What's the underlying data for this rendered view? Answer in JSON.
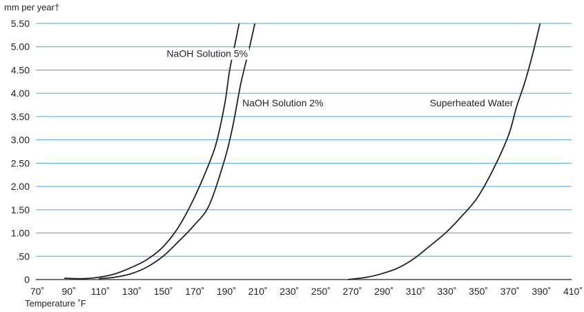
{
  "chart_data": {
    "type": "line",
    "ylabel": "mm per year†",
    "xlabel": "Temperature ˚F",
    "xlim": [
      70,
      410
    ],
    "ylim": [
      0,
      5.5
    ],
    "x_ticks": [
      70,
      90,
      110,
      130,
      150,
      170,
      190,
      210,
      230,
      250,
      270,
      290,
      310,
      330,
      350,
      370,
      390,
      410
    ],
    "x_tick_labels": [
      "70˚",
      "90˚",
      "110˚",
      "130˚",
      "150˚",
      "170˚",
      "190˚",
      "210˚",
      "230˚",
      "250˚",
      "270˚",
      "290˚",
      "310˚",
      "330˚",
      "350˚",
      "370˚",
      "390˚",
      "410˚"
    ],
    "y_ticks": [
      0,
      0.5,
      1.0,
      1.5,
      2.0,
      2.5,
      3.0,
      3.5,
      4.0,
      4.5,
      5.0,
      5.5
    ],
    "y_tick_labels": [
      "0",
      ".50",
      "1.00",
      "1.50",
      "2.00",
      "2.50",
      "3.00",
      "3.50",
      "4.00",
      "4.50",
      "5.00",
      "5.50"
    ],
    "grid": "horizontal",
    "colors": {
      "line": "#231f20",
      "grid": "#4aa3d8",
      "text": "#231f20"
    },
    "series": [
      {
        "name": "NaOH Solution 5%",
        "x": [
          88,
          100,
          110,
          120,
          130,
          140,
          150,
          160,
          170,
          180,
          185,
          190,
          193,
          196,
          199
        ],
        "y": [
          0.03,
          0.02,
          0.05,
          0.12,
          0.25,
          0.42,
          0.68,
          1.1,
          1.72,
          2.5,
          3.0,
          3.8,
          4.5,
          5.0,
          5.5
        ]
      },
      {
        "name": "NaOH Solution 2%",
        "x": [
          110,
          120,
          130,
          140,
          150,
          160,
          170,
          180,
          190,
          195,
          200,
          205,
          209
        ],
        "y": [
          0.02,
          0.05,
          0.12,
          0.26,
          0.48,
          0.8,
          1.15,
          1.6,
          2.6,
          3.3,
          4.2,
          4.9,
          5.5
        ]
      },
      {
        "name": "Superheated Water",
        "x": [
          268,
          280,
          290,
          300,
          310,
          320,
          330,
          340,
          350,
          360,
          370,
          375,
          380,
          385,
          390
        ],
        "y": [
          0.0,
          0.05,
          0.13,
          0.25,
          0.45,
          0.72,
          1.0,
          1.35,
          1.75,
          2.35,
          3.1,
          3.7,
          4.2,
          4.8,
          5.5
        ]
      }
    ],
    "annotations": [
      {
        "text": "NaOH Solution 5%",
        "x": 153,
        "y": 4.78
      },
      {
        "text": "NaOH Solution 2%",
        "x": 201,
        "y": 3.72
      },
      {
        "text": "Superheated Water",
        "x": 320,
        "y": 3.72
      }
    ]
  }
}
